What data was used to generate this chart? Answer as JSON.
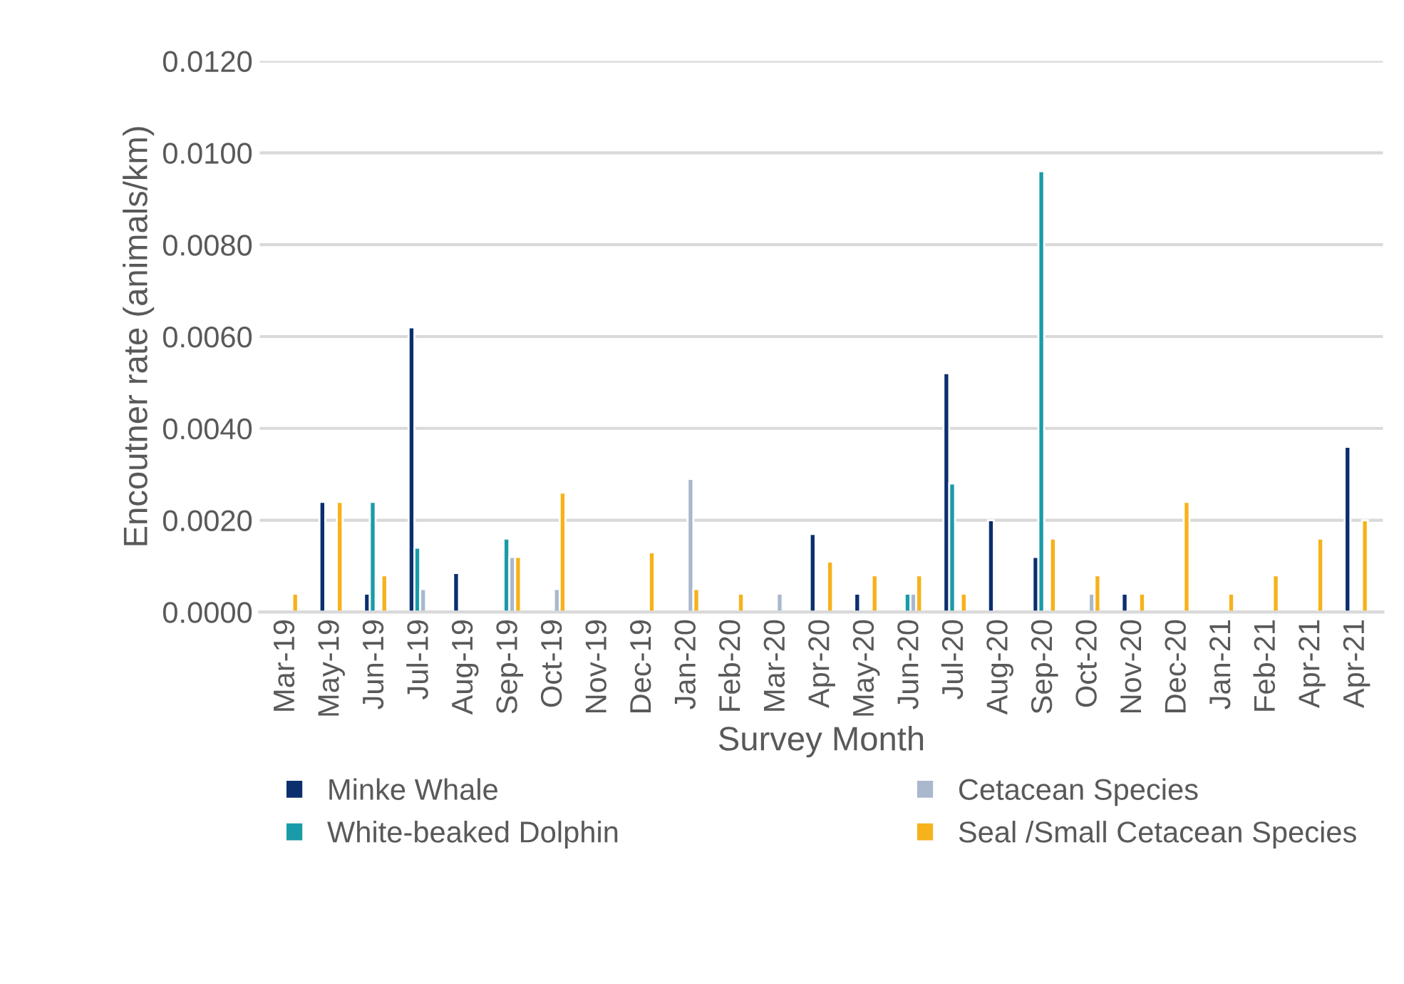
{
  "chart_data": {
    "type": "bar",
    "xlabel": "Survey Month",
    "ylabel": "Encoutner rate (animals/km)",
    "categories": [
      "Mar-19",
      "May-19",
      "Jun-19",
      "Jul-19",
      "Aug-19",
      "Sep-19",
      "Oct-19",
      "Nov-19",
      "Dec-19",
      "Jan-20",
      "Feb-20",
      "Mar-20",
      "Apr-20",
      "May-20",
      "Jun-20",
      "Jul-20",
      "Aug-20",
      "Sep-20",
      "Oct-20",
      "Nov-20",
      "Dec-20",
      "Jan-21",
      "Feb-21",
      "Apr-21",
      "Apr-21"
    ],
    "series": [
      {
        "name": "Minke Whale",
        "color": "#0b2e6e",
        "values": [
          null,
          0.0024,
          0.0004,
          0.0062,
          0.00085,
          null,
          null,
          null,
          null,
          null,
          null,
          null,
          0.0017,
          0.0004,
          null,
          0.0052,
          0.002,
          0.0012,
          null,
          0.0004,
          null,
          null,
          null,
          null,
          0.0036
        ]
      },
      {
        "name": "White-beaked Dolphin",
        "color": "#1a9ba8",
        "values": [
          null,
          null,
          0.0024,
          0.0014,
          null,
          0.0016,
          null,
          null,
          null,
          null,
          null,
          null,
          null,
          null,
          0.0004,
          0.0028,
          null,
          0.0096,
          null,
          null,
          null,
          null,
          null,
          null,
          null
        ]
      },
      {
        "name": "Cetacean Species",
        "color": "#a9b8cc",
        "values": [
          null,
          null,
          null,
          0.0005,
          null,
          0.0012,
          0.0005,
          null,
          null,
          0.0029,
          null,
          0.0004,
          null,
          null,
          0.0004,
          null,
          null,
          null,
          0.0004,
          null,
          null,
          null,
          null,
          null,
          null
        ]
      },
      {
        "name": "Seal /Small Cetacean Species",
        "color": "#f5b21b",
        "values": [
          0.0004,
          0.0024,
          0.0008,
          null,
          null,
          0.0012,
          0.0026,
          null,
          0.0013,
          0.0005,
          0.0004,
          null,
          0.0011,
          0.0008,
          0.0008,
          0.0004,
          null,
          0.0016,
          0.0008,
          0.0004,
          0.0024,
          0.0004,
          0.0008,
          0.0016,
          0.002
        ]
      }
    ],
    "ylim": [
      0,
      0.012
    ],
    "yticks": [
      {
        "value": 0,
        "label": "0.0000"
      },
      {
        "value": 0.002,
        "label": "0.0020"
      },
      {
        "value": 0.004,
        "label": "0.0040"
      },
      {
        "value": 0.006,
        "label": "0.0060"
      },
      {
        "value": 0.008,
        "label": "0.0080"
      },
      {
        "value": 0.01,
        "label": "0.0100"
      },
      {
        "value": 0.012,
        "label": "0.0120"
      }
    ],
    "grid": "y",
    "legend": "bottom"
  }
}
